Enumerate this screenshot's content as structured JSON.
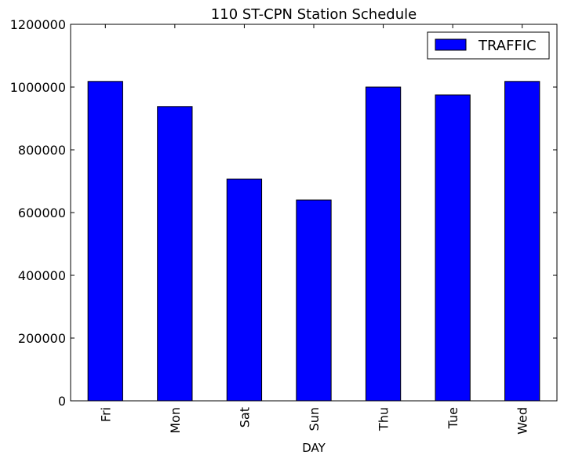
{
  "chart_data": {
    "type": "bar",
    "title": "110 ST-CPN Station Schedule",
    "xlabel": "DAY",
    "ylabel": "",
    "categories": [
      "Fri",
      "Mon",
      "Sat",
      "Sun",
      "Thu",
      "Tue",
      "Wed"
    ],
    "series": [
      {
        "name": "TRAFFIC",
        "values": [
          1018000,
          938000,
          707000,
          640000,
          1000000,
          975000,
          1018000
        ]
      }
    ],
    "ylim": [
      0,
      1200000
    ],
    "yticks": [
      0,
      200000,
      400000,
      600000,
      800000,
      1000000,
      1200000
    ],
    "ytick_labels": [
      "0",
      "200000",
      "400000",
      "600000",
      "800000",
      "1000000",
      "1200000"
    ],
    "grid": false,
    "legend_position": "top-right",
    "colors": {
      "bar": "#0000ff",
      "edge": "#000000",
      "background": "#ffffff"
    }
  }
}
